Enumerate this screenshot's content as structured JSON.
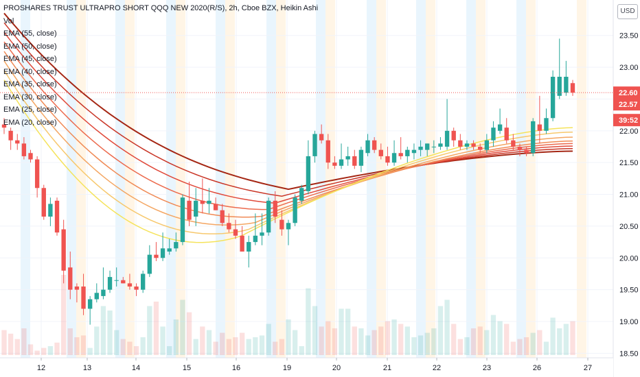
{
  "currency_label": "USD",
  "chart_data": {
    "type": "candlestick",
    "title": "PROSHARES TRUST ULTRAPRO SHORT QQQ NEW 2020(R/S), 2h, Cboe BZX, Heikin Ashi",
    "legend": [
      "Vol",
      "EMA (55, close)",
      "EMA (50, close)",
      "EMA (45, close)",
      "EMA (40, close)",
      "EMA (35, close)",
      "EMA (30, close)",
      "EMA (25, close)",
      "EMA (20, close)"
    ],
    "x_ticks": [
      "12",
      "13",
      "14",
      "15",
      "16",
      "19",
      "20",
      "21",
      "22",
      "23",
      "26",
      "27"
    ],
    "y_ticks": [
      "23.50",
      "23.00",
      "22.50",
      "22.00",
      "21.50",
      "21.00",
      "20.50",
      "20.00",
      "19.50",
      "19.00",
      "18.50"
    ],
    "y_tick_values": [
      23.5,
      23.0,
      22.5,
      22.0,
      21.5,
      21.0,
      20.5,
      20.0,
      19.5,
      19.0,
      18.5
    ],
    "ylim": [
      18.45,
      23.95
    ],
    "price_badges": [
      "22.60",
      "22.57",
      "39:52"
    ],
    "price_badge_values": [
      22.6,
      22.57,
      22.18
    ],
    "last_price": 22.6,
    "up_color": "#26a69a",
    "down_color": "#ef5350",
    "ema_colors": [
      "#a52714",
      "#c93627",
      "#e0493a",
      "#ec6a4d",
      "#f08a55",
      "#f4a662",
      "#f7c86c",
      "#f5e35a"
    ],
    "candles": [
      [
        22.1,
        22.2,
        21.95,
        22.05
      ],
      [
        22.0,
        22.05,
        21.7,
        21.85
      ],
      [
        21.85,
        21.95,
        21.7,
        21.8
      ],
      [
        21.8,
        21.9,
        21.55,
        21.6
      ],
      [
        21.65,
        21.7,
        21.5,
        21.55
      ],
      [
        21.55,
        21.6,
        20.95,
        21.1
      ],
      [
        21.1,
        21.15,
        20.6,
        20.65
      ],
      [
        20.65,
        20.95,
        20.5,
        20.85
      ],
      [
        20.9,
        20.95,
        20.35,
        20.4
      ],
      [
        20.45,
        20.6,
        19.6,
        19.8
      ],
      [
        19.85,
        20.1,
        19.35,
        19.5
      ],
      [
        19.55,
        19.6,
        19.3,
        19.5
      ],
      [
        19.55,
        19.75,
        19.1,
        19.2
      ],
      [
        19.2,
        19.4,
        18.95,
        19.35
      ],
      [
        19.35,
        19.6,
        19.3,
        19.45
      ],
      [
        19.4,
        19.85,
        19.35,
        19.5
      ],
      [
        19.5,
        19.8,
        19.45,
        19.7
      ],
      [
        19.65,
        19.85,
        19.55,
        19.65
      ],
      [
        19.65,
        19.7,
        19.6,
        19.6
      ],
      [
        19.6,
        19.75,
        19.5,
        19.55
      ],
      [
        19.55,
        19.6,
        19.4,
        19.5
      ],
      [
        19.5,
        19.8,
        19.45,
        19.75
      ],
      [
        19.75,
        20.2,
        19.7,
        20.05
      ],
      [
        20.05,
        20.25,
        19.95,
        20.0
      ],
      [
        20.0,
        20.4,
        19.95,
        20.15
      ],
      [
        20.1,
        20.3,
        20.05,
        20.15
      ],
      [
        20.15,
        20.4,
        20.1,
        20.25
      ],
      [
        20.25,
        21.0,
        20.2,
        20.95
      ],
      [
        20.9,
        21.2,
        20.5,
        20.6
      ],
      [
        20.65,
        21.1,
        20.5,
        20.9
      ],
      [
        20.9,
        21.25,
        20.7,
        20.85
      ],
      [
        20.85,
        21.1,
        20.7,
        20.9
      ],
      [
        20.85,
        20.95,
        20.75,
        20.75
      ],
      [
        20.75,
        20.85,
        20.5,
        20.55
      ],
      [
        20.55,
        20.7,
        20.4,
        20.45
      ],
      [
        20.45,
        20.6,
        20.3,
        20.35
      ],
      [
        20.35,
        20.5,
        20.1,
        20.1
      ],
      [
        20.1,
        20.35,
        19.85,
        20.25
      ],
      [
        20.25,
        20.7,
        20.2,
        20.35
      ],
      [
        20.35,
        20.7,
        20.2,
        20.4
      ],
      [
        20.4,
        20.95,
        20.35,
        20.9
      ],
      [
        20.9,
        21.05,
        20.55,
        20.65
      ],
      [
        20.6,
        20.75,
        20.35,
        20.45
      ],
      [
        20.45,
        20.6,
        20.2,
        20.55
      ],
      [
        20.55,
        21.0,
        20.5,
        20.95
      ],
      [
        20.9,
        21.15,
        20.85,
        21.1
      ],
      [
        21.05,
        21.85,
        21.0,
        21.6
      ],
      [
        21.6,
        22.0,
        21.5,
        21.95
      ],
      [
        21.95,
        22.1,
        21.8,
        21.85
      ],
      [
        21.85,
        21.95,
        21.4,
        21.5
      ],
      [
        21.5,
        21.6,
        21.4,
        21.45
      ],
      [
        21.45,
        21.8,
        21.4,
        21.55
      ],
      [
        21.55,
        21.75,
        21.45,
        21.6
      ],
      [
        21.6,
        21.7,
        21.4,
        21.45
      ],
      [
        21.45,
        21.75,
        21.35,
        21.7
      ],
      [
        21.65,
        21.95,
        21.6,
        21.85
      ],
      [
        21.85,
        21.9,
        21.65,
        21.7
      ],
      [
        21.7,
        21.8,
        21.55,
        21.6
      ],
      [
        21.6,
        21.75,
        21.45,
        21.5
      ],
      [
        21.5,
        21.85,
        21.45,
        21.65
      ],
      [
        21.65,
        21.9,
        21.55,
        21.6
      ],
      [
        21.6,
        21.75,
        21.5,
        21.7
      ],
      [
        21.65,
        21.8,
        21.55,
        21.7
      ],
      [
        21.7,
        21.85,
        21.6,
        21.75
      ],
      [
        21.7,
        21.8,
        21.6,
        21.8
      ],
      [
        21.75,
        21.85,
        21.65,
        21.75
      ],
      [
        21.75,
        21.9,
        21.7,
        21.8
      ],
      [
        21.75,
        22.5,
        21.7,
        22.0
      ],
      [
        22.0,
        22.05,
        21.75,
        21.85
      ],
      [
        21.85,
        21.95,
        21.7,
        21.75
      ],
      [
        21.75,
        21.85,
        21.7,
        21.8
      ],
      [
        21.8,
        21.85,
        21.7,
        21.75
      ],
      [
        21.75,
        21.8,
        21.65,
        21.7
      ],
      [
        21.7,
        21.95,
        21.65,
        21.85
      ],
      [
        21.85,
        22.15,
        21.75,
        22.05
      ],
      [
        22.0,
        22.35,
        21.95,
        22.1
      ],
      [
        22.05,
        22.2,
        21.8,
        21.85
      ],
      [
        21.85,
        21.95,
        21.7,
        21.75
      ],
      [
        21.75,
        21.8,
        21.6,
        21.7
      ],
      [
        21.7,
        21.75,
        21.6,
        21.65
      ],
      [
        21.65,
        22.2,
        21.6,
        22.15
      ],
      [
        22.1,
        22.55,
        21.8,
        22.0
      ],
      [
        22.0,
        22.35,
        21.95,
        22.2
      ],
      [
        22.2,
        22.95,
        22.15,
        22.85
      ],
      [
        22.55,
        23.45,
        22.5,
        22.85
      ],
      [
        22.6,
        23.1,
        22.55,
        22.85
      ],
      [
        22.75,
        22.8,
        22.55,
        22.6
      ]
    ],
    "volume": [
      0.28,
      0.24,
      0.18,
      0.3,
      0.12,
      0.05,
      0.08,
      0.1,
      0.14,
      0.9,
      0.3,
      0.2,
      0.22,
      0.08,
      0.32,
      0.55,
      0.5,
      0.28,
      0.18,
      0.15,
      0.1,
      0.2,
      0.55,
      0.6,
      0.32,
      0.1,
      0.4,
      0.62,
      0.48,
      0.18,
      0.32,
      0.28,
      0.15,
      0.25,
      0.18,
      0.2,
      0.25,
      0.18,
      0.2,
      0.22,
      0.35,
      0.15,
      0.18,
      0.4,
      0.28,
      0.1,
      0.75,
      0.55,
      0.32,
      0.38,
      0.3,
      0.52,
      0.52,
      0.32,
      0.3,
      0.22,
      0.28,
      0.32,
      0.38,
      0.4,
      0.35,
      0.32,
      0.2,
      0.22,
      0.25,
      0.3,
      0.55,
      0.62,
      0.35,
      0.18,
      0.2,
      0.3,
      0.32,
      0.28,
      0.45,
      0.38,
      0.35,
      0.15,
      0.18,
      0.2,
      0.25,
      0.28,
      0.15,
      0.42,
      0.3,
      0.35,
      0.38
    ],
    "ema_end_values": [
      21.68,
      21.72,
      21.76,
      21.8,
      21.84,
      21.9,
      21.98,
      22.05
    ],
    "ema_start_values": [
      23.85,
      23.7,
      23.55,
      23.4,
      23.25,
      23.1,
      22.95,
      22.8
    ],
    "ema_trough_values": [
      21.08,
      20.97,
      20.86,
      20.76,
      20.65,
      20.55,
      20.44,
      20.34
    ],
    "ema_left_trough_values": [
      21.4,
      21.2,
      21.0,
      20.78,
      20.57,
      20.37,
      20.17,
      19.98
    ]
  }
}
